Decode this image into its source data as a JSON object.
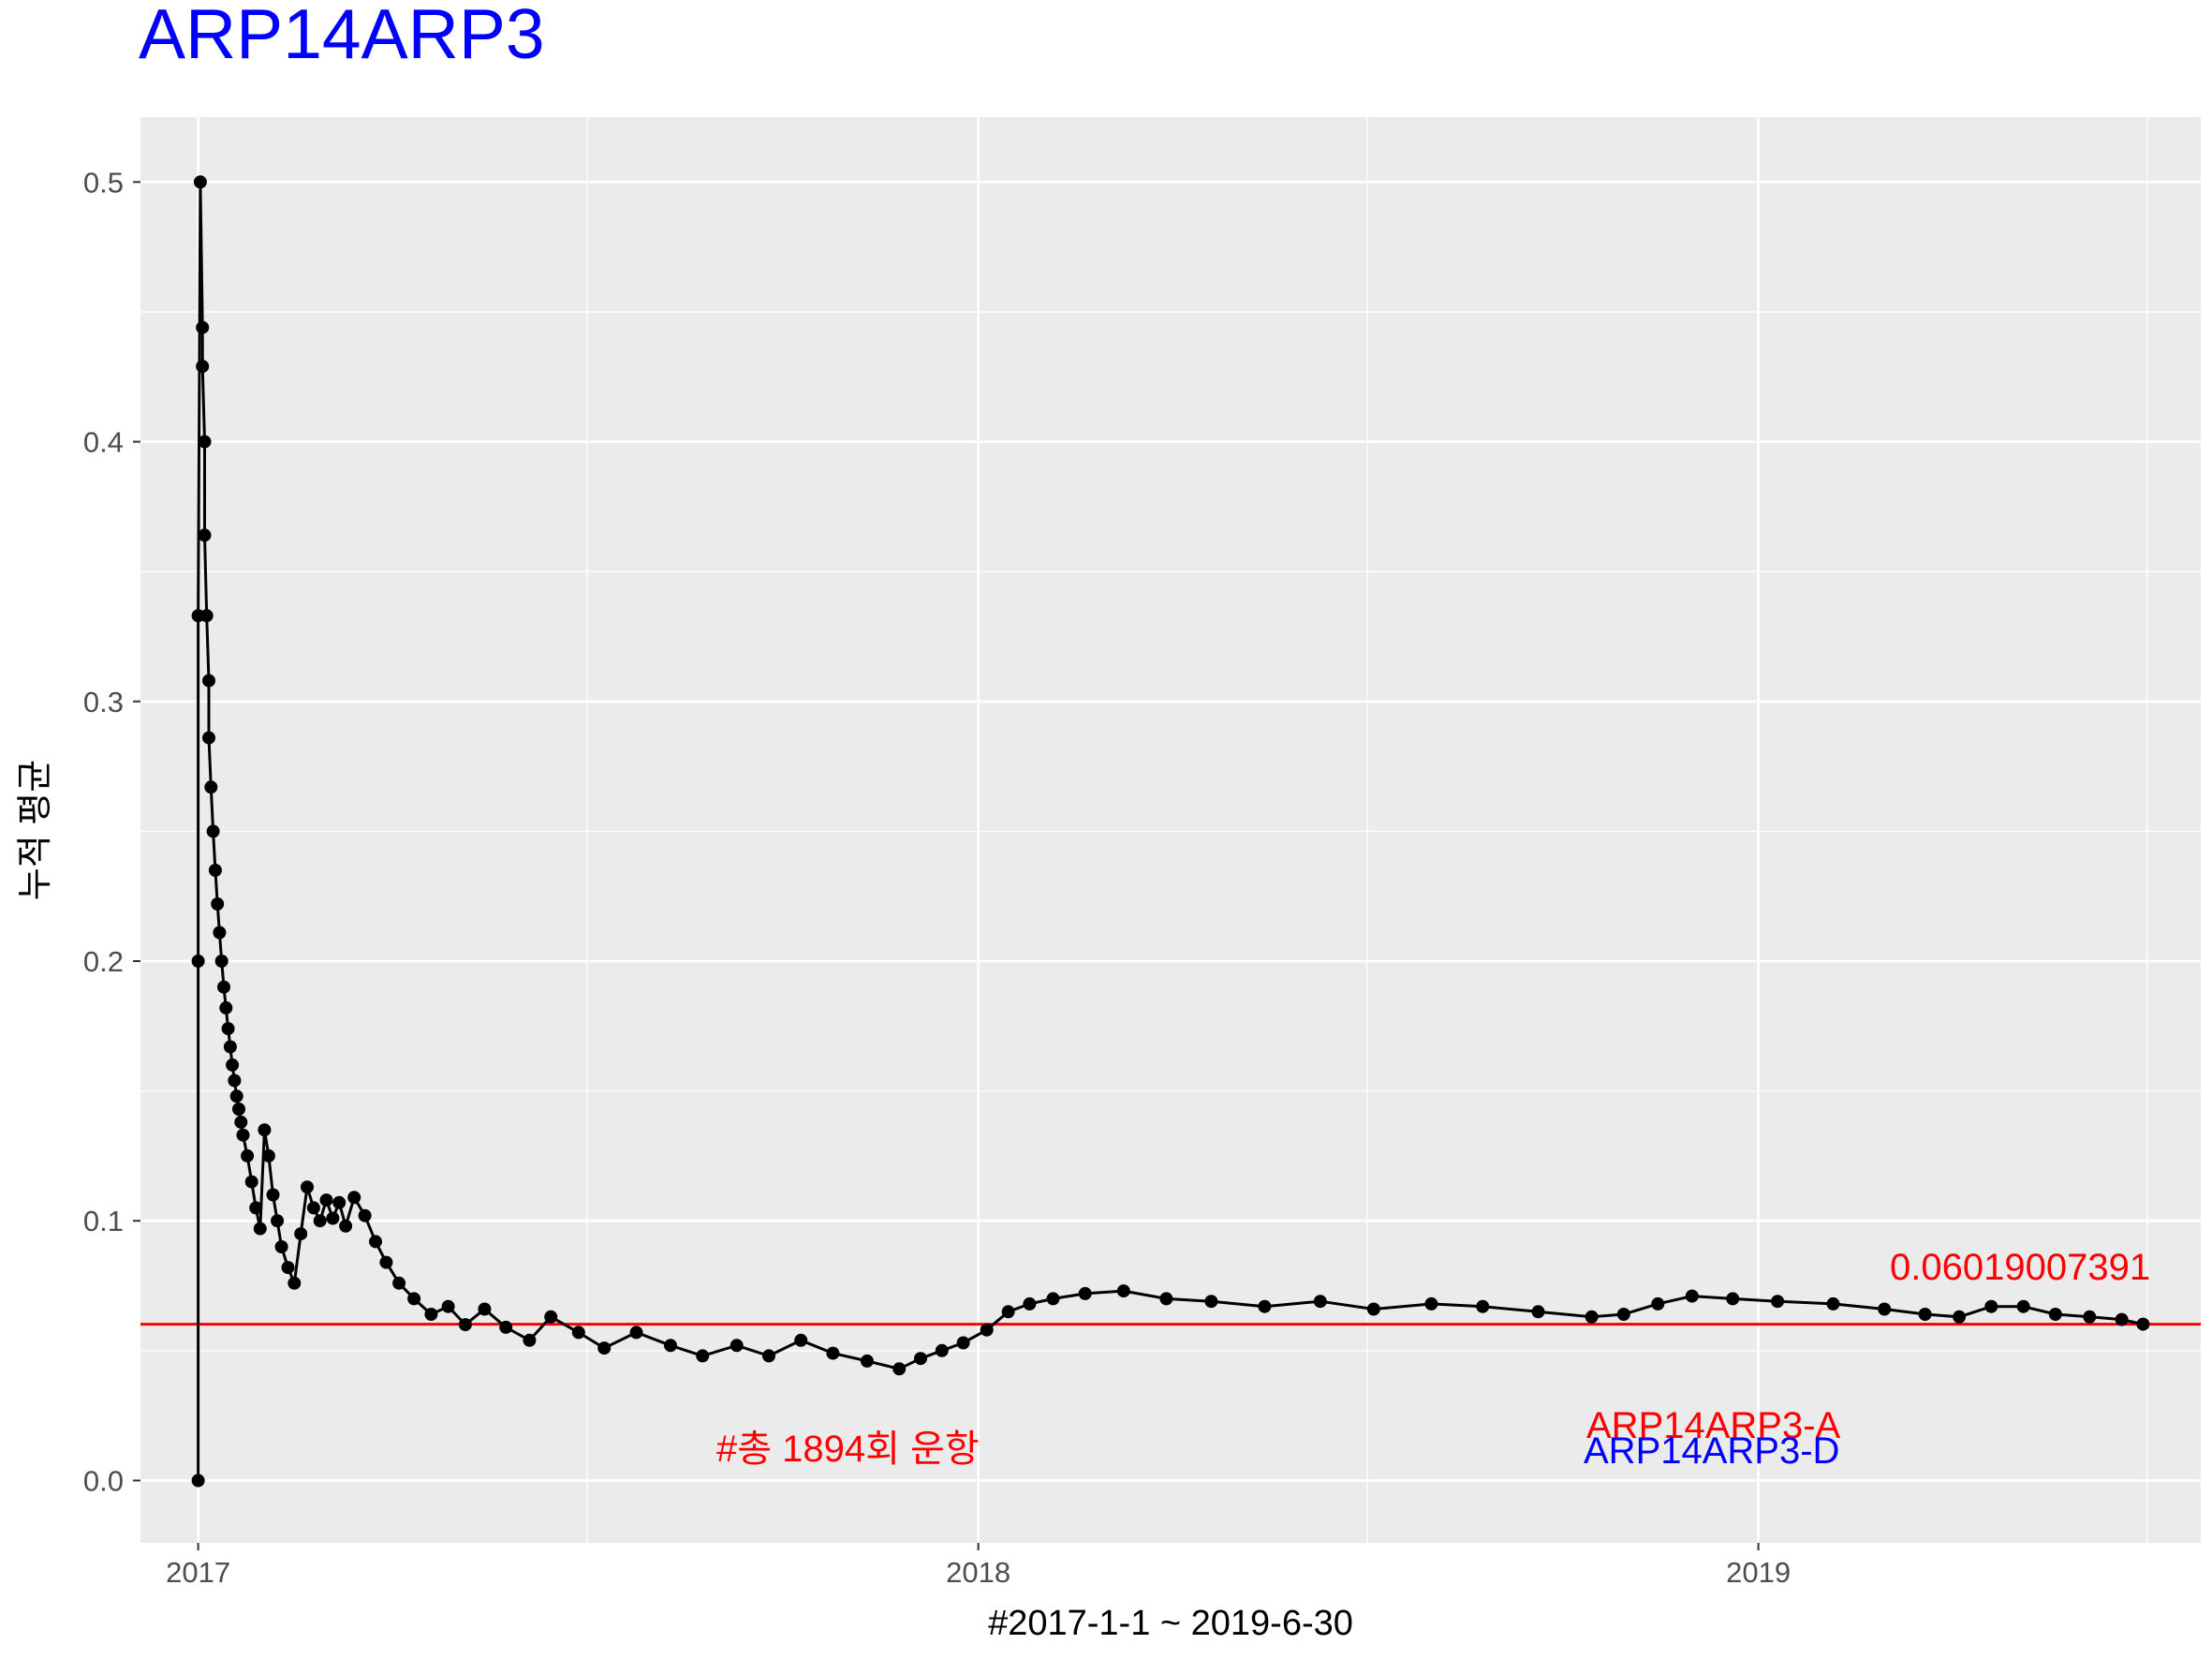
{
  "chart_data": {
    "type": "line",
    "title": "ARP14ARP3",
    "xlabel": "#2017-1-1 ~ 2019-6-30",
    "ylabel": "누적 평균",
    "x_range": [
      "2017-01-01",
      "2019-06-30"
    ],
    "x_ticks": [
      "2017",
      "2018",
      "2019"
    ],
    "x_tick_dates": [
      "2017-01-01",
      "2018-01-01",
      "2019-01-01"
    ],
    "y_ticks": [
      "0.0",
      "0.1",
      "0.2",
      "0.3",
      "0.4",
      "0.5"
    ],
    "ylim": [
      -0.024,
      0.525
    ],
    "grid": true,
    "reference_line": {
      "value": 0.0601900739,
      "label": "0.06019007391",
      "color": "#ff0000"
    },
    "annotations": [
      {
        "text": "#총 1894회 운항",
        "color": "#ff0000"
      },
      {
        "text": "ARP14ARP3-A",
        "color": "#ff0000"
      },
      {
        "text": "ARP14ARP3-D",
        "color": "#0000ff"
      }
    ],
    "colors": {
      "series": "#000000",
      "title": "#0000ff",
      "panel": "#ebebeb",
      "grid": "#ffffff"
    },
    "series": [
      {
        "x": [
          "2017-01-01",
          "2017-01-01",
          "2017-01-01",
          "2017-01-02",
          "2017-01-03",
          "2017-01-03",
          "2017-01-04",
          "2017-01-04",
          "2017-01-05",
          "2017-01-06",
          "2017-01-06",
          "2017-01-07",
          "2017-01-08",
          "2017-01-09",
          "2017-01-10",
          "2017-01-11",
          "2017-01-12",
          "2017-01-13",
          "2017-01-14",
          "2017-01-15",
          "2017-01-16",
          "2017-01-17",
          "2017-01-18",
          "2017-01-19",
          "2017-01-20",
          "2017-01-21",
          "2017-01-22",
          "2017-01-24",
          "2017-01-26",
          "2017-01-28",
          "2017-01-30",
          "2017-02-01",
          "2017-02-03",
          "2017-02-05",
          "2017-02-07",
          "2017-02-09",
          "2017-02-12",
          "2017-02-15",
          "2017-02-18",
          "2017-02-21",
          "2017-02-24",
          "2017-02-27",
          "2017-03-02",
          "2017-03-05",
          "2017-03-08",
          "2017-03-11",
          "2017-03-15",
          "2017-03-20",
          "2017-03-25",
          "2017-03-30",
          "2017-04-05",
          "2017-04-12",
          "2017-04-20",
          "2017-04-28",
          "2017-05-06",
          "2017-05-15",
          "2017-05-25",
          "2017-06-05",
          "2017-06-15",
          "2017-06-28",
          "2017-07-10",
          "2017-07-25",
          "2017-08-10",
          "2017-08-25",
          "2017-09-10",
          "2017-09-25",
          "2017-10-10",
          "2017-10-25",
          "2017-11-10",
          "2017-11-25",
          "2017-12-05",
          "2017-12-15",
          "2017-12-25",
          "2018-01-05",
          "2018-01-15",
          "2018-01-25",
          "2018-02-05",
          "2018-02-20",
          "2018-03-10",
          "2018-03-30",
          "2018-04-20",
          "2018-05-15",
          "2018-06-10",
          "2018-07-05",
          "2018-08-01",
          "2018-08-25",
          "2018-09-20",
          "2018-10-15",
          "2018-10-30",
          "2018-11-15",
          "2018-12-01",
          "2018-12-20",
          "2019-01-10",
          "2019-02-05",
          "2019-03-01",
          "2019-03-20",
          "2019-04-05",
          "2019-04-20",
          "2019-05-05",
          "2019-05-20",
          "2019-06-05",
          "2019-06-20",
          "2019-06-30"
        ],
        "y": [
          0.0,
          0.2,
          0.333,
          0.5,
          0.444,
          0.429,
          0.4,
          0.364,
          0.333,
          0.308,
          0.286,
          0.267,
          0.25,
          0.235,
          0.222,
          0.211,
          0.2,
          0.19,
          0.182,
          0.174,
          0.167,
          0.16,
          0.154,
          0.148,
          0.143,
          0.138,
          0.133,
          0.125,
          0.115,
          0.105,
          0.097,
          0.135,
          0.125,
          0.11,
          0.1,
          0.09,
          0.082,
          0.076,
          0.095,
          0.113,
          0.105,
          0.1,
          0.108,
          0.101,
          0.107,
          0.098,
          0.109,
          0.102,
          0.092,
          0.084,
          0.076,
          0.07,
          0.064,
          0.067,
          0.06,
          0.066,
          0.059,
          0.054,
          0.063,
          0.057,
          0.051,
          0.057,
          0.052,
          0.048,
          0.052,
          0.048,
          0.054,
          0.049,
          0.046,
          0.043,
          0.047,
          0.05,
          0.053,
          0.058,
          0.065,
          0.068,
          0.07,
          0.072,
          0.073,
          0.07,
          0.069,
          0.067,
          0.069,
          0.066,
          0.068,
          0.067,
          0.065,
          0.063,
          0.064,
          0.068,
          0.071,
          0.07,
          0.069,
          0.068,
          0.066,
          0.064,
          0.063,
          0.067,
          0.067,
          0.064,
          0.063,
          0.062,
          0.0602
        ]
      }
    ]
  }
}
